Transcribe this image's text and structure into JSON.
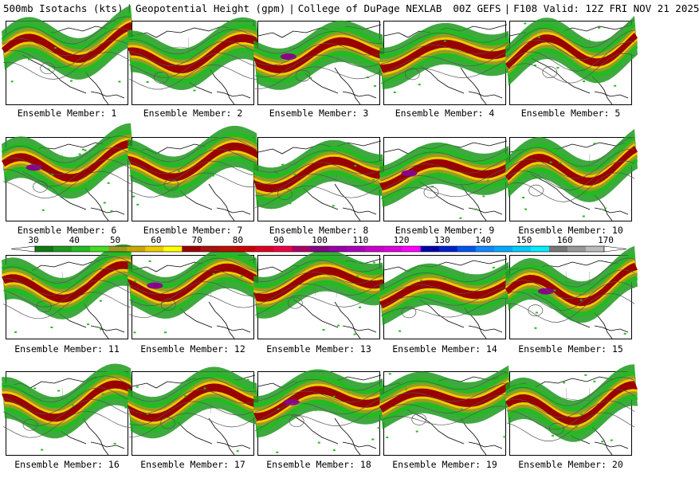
{
  "header": {
    "left": "500mb Isotachs (kts)",
    "mid": "Geopotential Height (gpm)",
    "source": "College of DuPage NEXLAB",
    "run": "00Z GEFS",
    "valid": "F108 Valid: 12Z FRI NOV 21 2025"
  },
  "colorbar": {
    "ticks": [
      "30",
      "40",
      "50",
      "60",
      "70",
      "80",
      "90",
      "100",
      "110",
      "120",
      "130",
      "140",
      "150",
      "160",
      "170"
    ],
    "colors": [
      "#0f7a0f",
      "#1d9a1d",
      "#22bb22",
      "#44dd22",
      "#9a9a22",
      "#c8a800",
      "#eecc00",
      "#ffff00",
      "#990000",
      "#aa1111",
      "#bb1100",
      "#cc0000",
      "#dd0022",
      "#ee0044",
      "#aa0066",
      "#880088",
      "#9900aa",
      "#aa00bb",
      "#cc00cc",
      "#dd00dd",
      "#ff00ff",
      "#0000aa",
      "#0022cc",
      "#0055ee",
      "#1188ff",
      "#00aaff",
      "#00ccff",
      "#00eeff",
      "#777777",
      "#999999",
      "#bbbbbb"
    ]
  },
  "members": [
    {
      "label": "Ensemble Member: 1"
    },
    {
      "label": "Ensemble Member: 2"
    },
    {
      "label": "Ensemble Member: 3"
    },
    {
      "label": "Ensemble Member: 4"
    },
    {
      "label": "Ensemble Member: 5"
    },
    {
      "label": "Ensemble Member: 6"
    },
    {
      "label": "Ensemble Member: 7"
    },
    {
      "label": "Ensemble Member: 8"
    },
    {
      "label": "Ensemble Member: 9"
    },
    {
      "label": "Ensemble Member: 10"
    },
    {
      "label": "Ensemble Member: 11"
    },
    {
      "label": "Ensemble Member: 12"
    },
    {
      "label": "Ensemble Member: 13"
    },
    {
      "label": "Ensemble Member: 14"
    },
    {
      "label": "Ensemble Member: 15"
    },
    {
      "label": "Ensemble Member: 16"
    },
    {
      "label": "Ensemble Member: 17"
    },
    {
      "label": "Ensemble Member: 18"
    },
    {
      "label": "Ensemble Member: 19"
    },
    {
      "label": "Ensemble Member: 20"
    }
  ]
}
